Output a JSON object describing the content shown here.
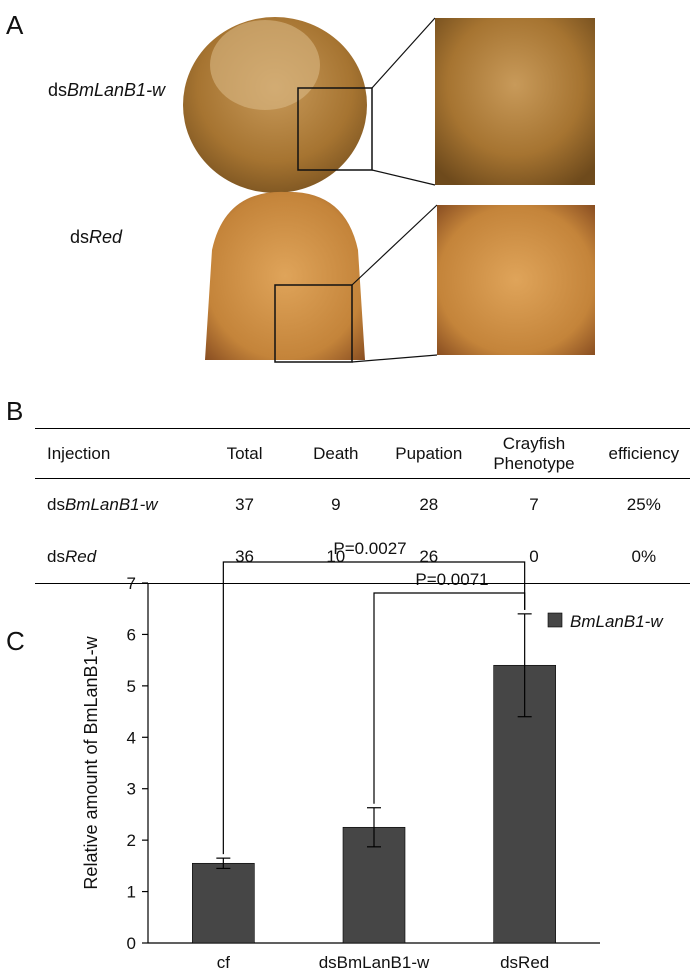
{
  "panel_a": {
    "label": "A",
    "rows": [
      [
        "ds",
        "BmLanB1-w"
      ],
      [
        "ds",
        "Red"
      ]
    ]
  },
  "panel_b": {
    "label": "B",
    "header": [
      "Injection",
      "Total",
      "Death",
      "Pupation",
      "Crayfish Phenotype",
      "efficiency"
    ],
    "rows": [
      [
        [
          "ds",
          "BmLanB1-w"
        ],
        "37",
        "9",
        "28",
        "7",
        "25%"
      ],
      [
        [
          "ds",
          "Red"
        ],
        "36",
        "10",
        "26",
        "0",
        "0%"
      ]
    ]
  },
  "chart_data": {
    "type": "bar",
    "label": "C",
    "ylabel": "Relative amount of BmLanB1-w",
    "categories": [
      "cf",
      "dsBmLanB1-w",
      "dsRed"
    ],
    "series": [
      {
        "name": "BmLanB1-w",
        "color": "#464646",
        "values": [
          1.55,
          2.25,
          5.4
        ],
        "errors": [
          0.1,
          0.38,
          1.0
        ]
      }
    ],
    "annotations": [
      "P=0.0027",
      "P=0.0071"
    ],
    "ylim": [
      0,
      7
    ],
    "yticks": [
      0,
      1,
      2,
      3,
      4,
      5,
      6,
      7
    ]
  }
}
